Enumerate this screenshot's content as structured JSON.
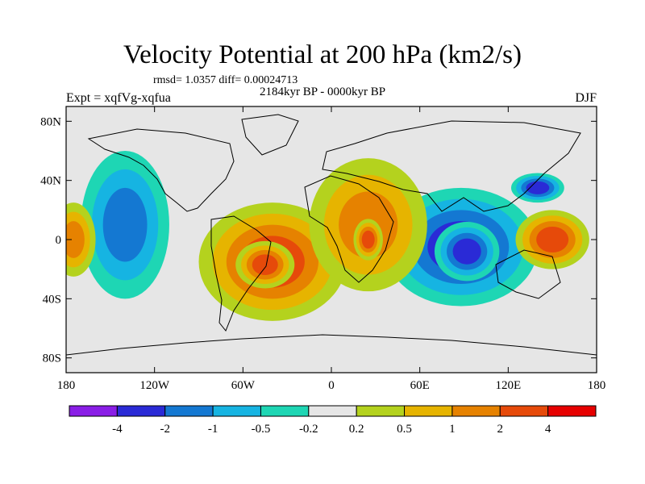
{
  "chart_data": {
    "type": "heatmap",
    "title": "Velocity Potential at 200 hPa (km2/s)",
    "stats_text": "rmsd= 1.0357 diff= 0.00024713",
    "experiment_label": "Expt = xqfVg-xqfua",
    "period_label": "2184kyr BP - 0000kyr BP",
    "season_label": "DJF",
    "x_ticks": [
      "180",
      "120W",
      "60W",
      "0",
      "60E",
      "120E",
      "180"
    ],
    "x_values": [
      -180,
      -120,
      -60,
      0,
      60,
      120,
      180
    ],
    "y_ticks": [
      "80N",
      "40N",
      "0",
      "40S",
      "80S"
    ],
    "y_values": [
      80,
      40,
      0,
      -40,
      -80
    ],
    "xlim": [
      -180,
      180
    ],
    "ylim": [
      -90,
      90
    ],
    "colorbar": {
      "labels": [
        "-4",
        "-2",
        "-1",
        "-0.5",
        "-0.2",
        "0.2",
        "0.5",
        "1",
        "2",
        "4"
      ],
      "colors": [
        "#8a1ee6",
        "#2a2ad6",
        "#1478d2",
        "#16b4e2",
        "#1ed6b4",
        "#e6e6e6",
        "#b4d21e",
        "#e6b400",
        "#e68200",
        "#e64a0a",
        "#e60000"
      ]
    },
    "field_blobs": [
      {
        "region": "indian-ocean-centre",
        "lon": 88,
        "lat": -5,
        "rx": 52,
        "ry": 40,
        "level": 1
      },
      {
        "region": "indian-ocean-core",
        "lon": 92,
        "lat": -8,
        "rx": 22,
        "ry": 20,
        "level": 1
      },
      {
        "region": "east-asia-centre",
        "lon": 140,
        "lat": 35,
        "rx": 18,
        "ry": 10,
        "level": 1
      },
      {
        "region": "north-pacific",
        "lon": -140,
        "lat": 10,
        "rx": 30,
        "ry": 50,
        "level": 2
      },
      {
        "region": "south-america-centre",
        "lon": -40,
        "lat": -15,
        "rx": 50,
        "ry": 40,
        "level": 9
      },
      {
        "region": "south-america-core",
        "lon": -45,
        "lat": -17,
        "rx": 20,
        "ry": 16,
        "level": 9
      },
      {
        "region": "africa-centre",
        "lon": 25,
        "lat": 10,
        "rx": 40,
        "ry": 45,
        "level": 8
      },
      {
        "region": "africa-core",
        "lon": 25,
        "lat": 0,
        "rx": 10,
        "ry": 14,
        "level": 9
      },
      {
        "region": "west-pacific-centre",
        "lon": 150,
        "lat": 0,
        "rx": 25,
        "ry": 20,
        "level": 9
      },
      {
        "region": "dateline-west",
        "lon": -175,
        "lat": 0,
        "rx": 15,
        "ry": 25,
        "level": 8
      }
    ]
  }
}
